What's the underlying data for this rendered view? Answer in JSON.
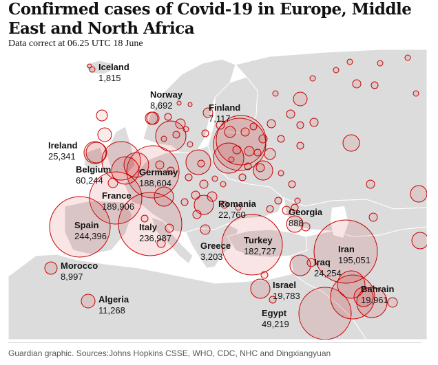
{
  "title": "Confirmed cases of Covid-19 in Europe, Middle East and North Africa",
  "subtitle": "Data correct at 06.25 UTC 18 June",
  "source": "Guardian graphic. Sources:Johns Hopkins CSSE, WHO, CDC, NHC and Dingxiangyuan",
  "colors": {
    "land": "#dcdcdc",
    "sea": "#ffffff",
    "bubble_fill": "rgba(200,0,0,0.10)",
    "bubble_stroke": "#c70000"
  },
  "labeled_countries": [
    {
      "name": "Iceland",
      "cases": "1,815"
    },
    {
      "name": "Norway",
      "cases": "8,692"
    },
    {
      "name": "Finland",
      "cases": "7,117"
    },
    {
      "name": "Ireland",
      "cases": "25,341"
    },
    {
      "name": "Belgium",
      "cases": "60,244"
    },
    {
      "name": "Germany",
      "cases": "188,604"
    },
    {
      "name": "France",
      "cases": "189,906"
    },
    {
      "name": "Romania",
      "cases": "22,760"
    },
    {
      "name": "Georgia",
      "cases": "888"
    },
    {
      "name": "Spain",
      "cases": "244,396"
    },
    {
      "name": "Italy",
      "cases": "236,987"
    },
    {
      "name": "Greece",
      "cases": "3,203"
    },
    {
      "name": "Turkey",
      "cases": "182,727"
    },
    {
      "name": "Iran",
      "cases": "195,051"
    },
    {
      "name": "Morocco",
      "cases": "8,997"
    },
    {
      "name": "Iraq",
      "cases": "24,254"
    },
    {
      "name": "Israel",
      "cases": "19,783"
    },
    {
      "name": "Bahrain",
      "cases": "19,961"
    },
    {
      "name": "Algeria",
      "cases": "11,268"
    },
    {
      "name": "Egypt",
      "cases": "49,219"
    }
  ]
}
